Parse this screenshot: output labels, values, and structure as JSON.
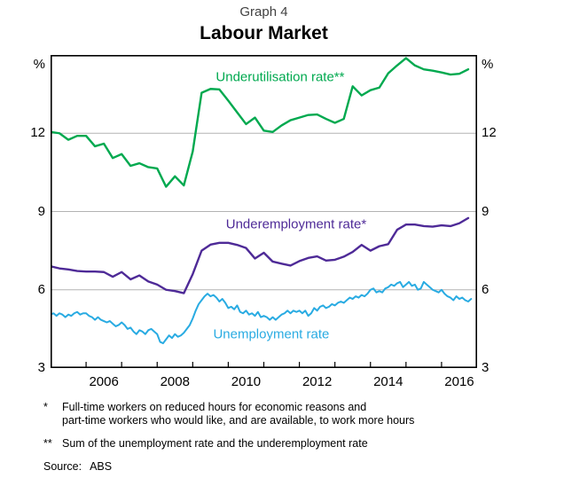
{
  "page": {
    "graph_number": "Graph 4",
    "title": "Labour Market"
  },
  "chart_data": {
    "type": "line",
    "title": "Labour Market",
    "subtitle": "Graph 4",
    "unit_left": "%",
    "unit_right": "%",
    "ylim": [
      3,
      15
    ],
    "yticks": [
      12,
      9,
      6,
      3
    ],
    "gridlines": [
      12,
      9,
      6
    ],
    "xlim": [
      2005,
      2017
    ],
    "xticks_years": [
      2006,
      2007,
      2008,
      2009,
      2010,
      2011,
      2012,
      2013,
      2014,
      2015,
      2016
    ],
    "xlabels": [
      2006,
      2008,
      2010,
      2012,
      2014,
      2016
    ],
    "grid_color": "#b3b3b3",
    "axis_color": "#000000",
    "legend_position": "inline-labels",
    "series": [
      {
        "name": "Underutilisation rate**",
        "color": "#00a94f",
        "stroke_width": 2.4,
        "start": 2005.0,
        "step": 0.25,
        "label_t": 2011.46,
        "label_v": 14.15,
        "values": [
          12.05,
          12,
          11.75,
          11.9,
          11.9,
          11.5,
          11.6,
          11.05,
          11.2,
          10.75,
          10.85,
          10.7,
          10.65,
          9.95,
          10.35,
          10,
          11.3,
          13.55,
          13.7,
          13.68,
          13.25,
          12.8,
          12.35,
          12.6,
          12.1,
          12.05,
          12.3,
          12.5,
          12.6,
          12.7,
          12.72,
          12.55,
          12.4,
          12.55,
          13.8,
          13.45,
          13.65,
          13.75,
          14.3,
          14.6,
          14.88,
          14.6,
          14.45,
          14.4,
          14.33,
          14.25,
          14.28,
          14.45
        ]
      },
      {
        "name": "Underemployment rate*",
        "color": "#4e2a97",
        "stroke_width": 2.4,
        "start": 2005.0,
        "step": 0.25,
        "label_t": 2011.91,
        "label_v": 8.52,
        "values": [
          6.9,
          6.82,
          6.78,
          6.72,
          6.7,
          6.7,
          6.68,
          6.5,
          6.68,
          6.4,
          6.55,
          6.32,
          6.2,
          6.0,
          5.95,
          5.87,
          6.6,
          7.5,
          7.73,
          7.8,
          7.8,
          7.72,
          7.6,
          7.2,
          7.42,
          7.08,
          7.0,
          6.93,
          7.1,
          7.22,
          7.28,
          7.12,
          7.15,
          7.27,
          7.45,
          7.72,
          7.5,
          7.67,
          7.75,
          8.3,
          8.5,
          8.5,
          8.44,
          8.42,
          8.47,
          8.44,
          8.55,
          8.75
        ]
      },
      {
        "name": "Unemployment rate",
        "color": "#29abe2",
        "stroke_width": 2.0,
        "start": 2005.0,
        "step": 0.0833333,
        "label_t": 2011.21,
        "label_v": 4.28,
        "values": [
          5.05,
          5.1,
          5.0,
          5.1,
          5.05,
          4.95,
          5.05,
          5.0,
          5.1,
          5.15,
          5.05,
          5.1,
          5.1,
          5.0,
          4.95,
          4.85,
          4.95,
          4.85,
          4.8,
          4.75,
          4.8,
          4.7,
          4.6,
          4.65,
          4.75,
          4.65,
          4.5,
          4.55,
          4.4,
          4.3,
          4.45,
          4.4,
          4.3,
          4.45,
          4.5,
          4.4,
          4.3,
          4.0,
          3.95,
          4.1,
          4.25,
          4.15,
          4.3,
          4.2,
          4.25,
          4.35,
          4.5,
          4.65,
          4.9,
          5.2,
          5.45,
          5.6,
          5.75,
          5.85,
          5.75,
          5.8,
          5.7,
          5.55,
          5.65,
          5.5,
          5.3,
          5.35,
          5.25,
          5.4,
          5.15,
          5.1,
          5.2,
          5.05,
          5.1,
          5.0,
          5.15,
          4.95,
          5.0,
          4.95,
          4.85,
          4.95,
          4.85,
          4.95,
          5.05,
          5.1,
          5.2,
          5.1,
          5.2,
          5.15,
          5.2,
          5.1,
          5.2,
          5.0,
          5.1,
          5.3,
          5.2,
          5.35,
          5.4,
          5.3,
          5.35,
          5.45,
          5.4,
          5.5,
          5.55,
          5.5,
          5.6,
          5.7,
          5.65,
          5.75,
          5.7,
          5.8,
          5.75,
          5.85,
          6.0,
          6.05,
          5.9,
          5.95,
          5.9,
          6.05,
          6.1,
          6.2,
          6.15,
          6.25,
          6.3,
          6.1,
          6.2,
          6.3,
          6.15,
          6.2,
          6.0,
          6.05,
          6.3,
          6.2,
          6.1,
          6.0,
          5.95,
          5.9,
          6.0,
          5.85,
          5.75,
          5.7,
          5.6,
          5.75,
          5.65,
          5.7,
          5.6,
          5.55,
          5.65
        ]
      }
    ]
  },
  "footnotes": [
    {
      "marker": "*",
      "lines": [
        "Full-time workers on reduced hours for economic reasons and",
        "part-time workers who would like, and are available, to work more hours"
      ]
    },
    {
      "marker": "**",
      "lines": [
        "Sum of the unemployment rate and the underemployment rate"
      ]
    }
  ],
  "source": {
    "label": "Source:",
    "value": "ABS"
  }
}
